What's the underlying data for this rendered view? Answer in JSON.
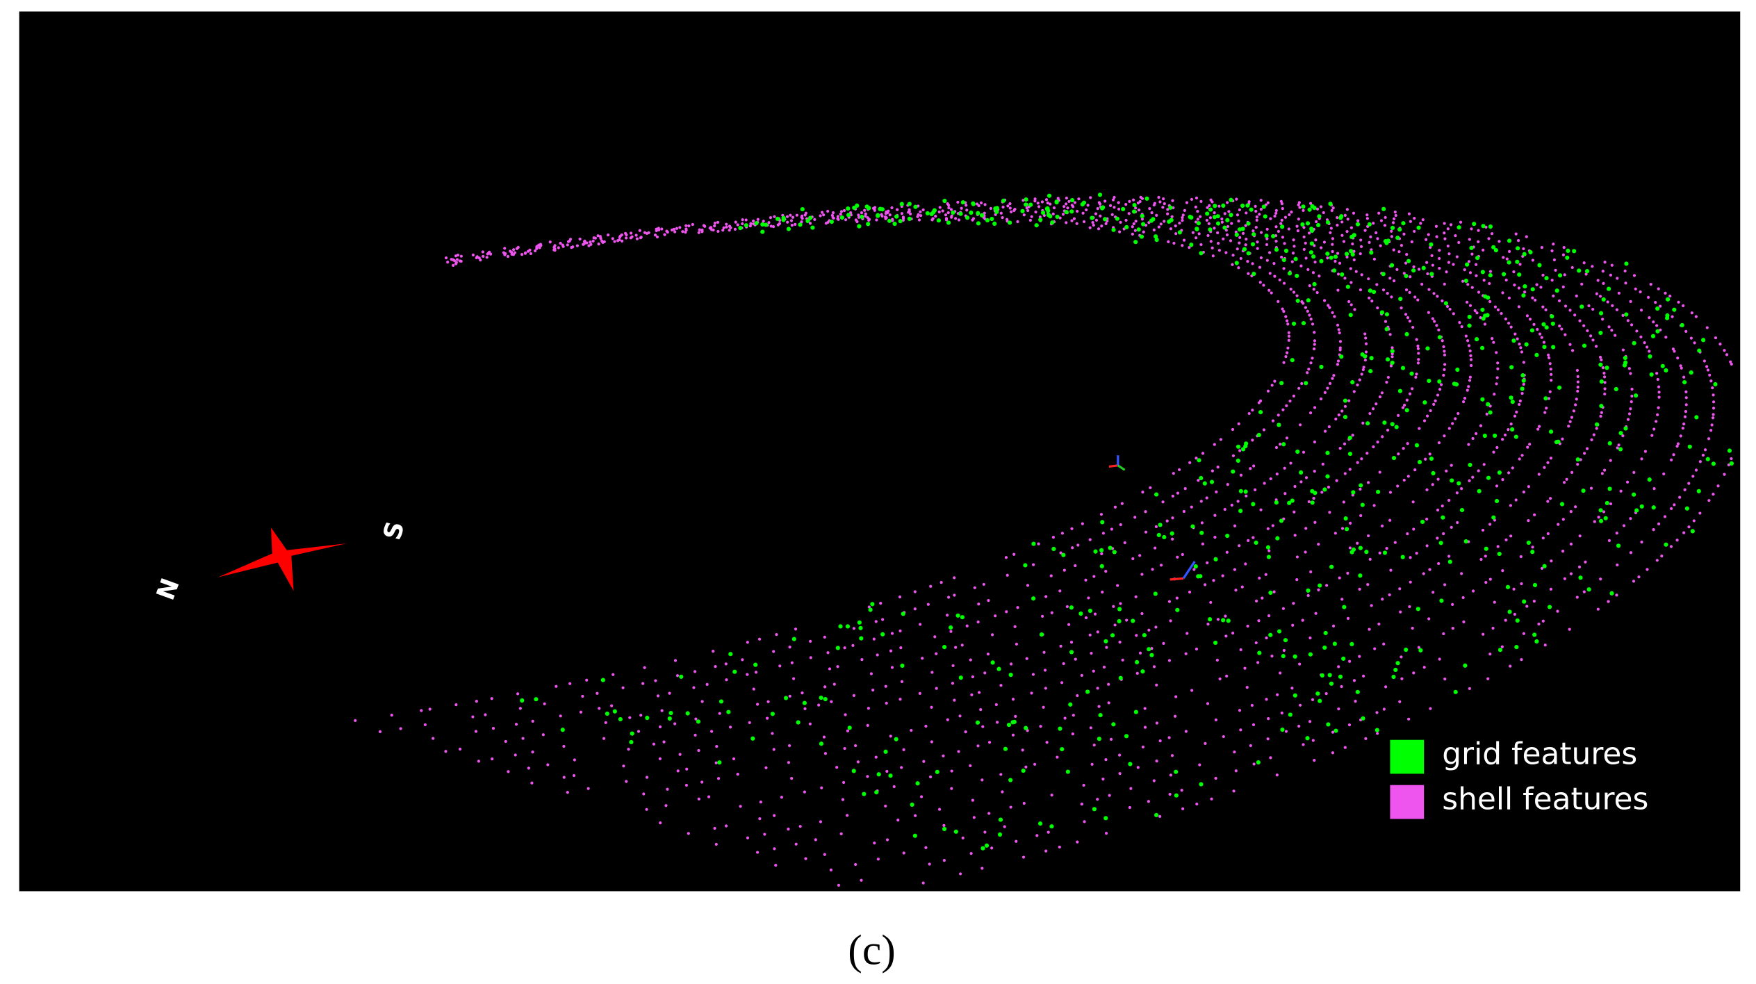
{
  "legend": [
    {
      "label": "grid features",
      "color": "#00ff00"
    },
    {
      "label": "shell features",
      "color": "#ee55ee"
    }
  ],
  "compass": {
    "north": "N",
    "south": "S"
  },
  "caption": "(c)"
}
